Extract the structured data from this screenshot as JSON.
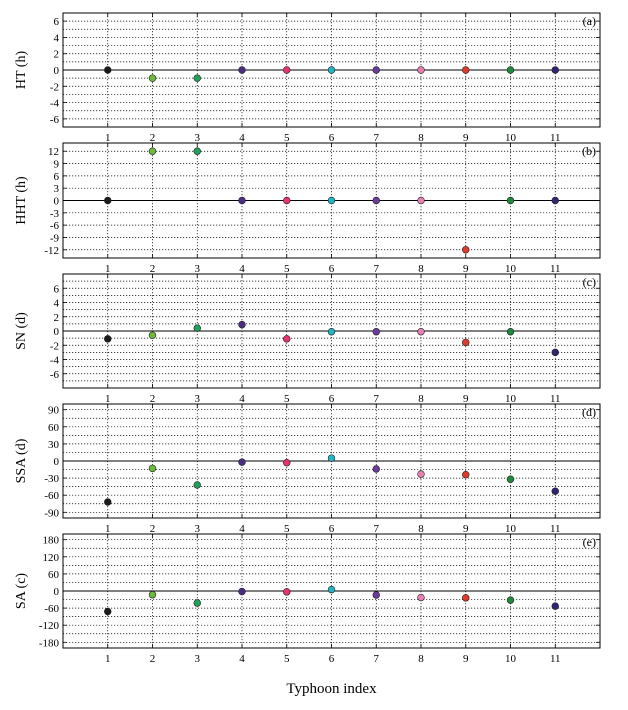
{
  "chart_data": [
    {
      "type": "scatter",
      "panel_label": "(a)",
      "ylabel": "HT (h)",
      "x": [
        1,
        2,
        3,
        4,
        5,
        6,
        7,
        8,
        9,
        10,
        11
      ],
      "y": [
        0,
        -1,
        -1,
        0,
        0,
        0,
        0,
        0,
        0,
        0,
        0
      ],
      "ylim": [
        -7,
        7
      ],
      "yticks": [
        6,
        4,
        2,
        0,
        -2,
        -4,
        -6
      ],
      "gridlines": [
        7,
        6,
        5,
        4,
        3,
        2,
        1,
        -1,
        -2,
        -3,
        -4,
        -5,
        -6,
        -7
      ],
      "grid": true
    },
    {
      "type": "scatter",
      "panel_label": "(b)",
      "ylabel": "HHT (h)",
      "x": [
        1,
        2,
        3,
        4,
        5,
        6,
        7,
        8,
        9,
        10,
        11
      ],
      "y": [
        0,
        12,
        12,
        0,
        0,
        0,
        0,
        0,
        -12,
        0,
        0
      ],
      "ylim": [
        -14,
        14
      ],
      "yticks": [
        12,
        9,
        6,
        3,
        0,
        -3,
        -6,
        -9,
        -12
      ],
      "gridlines": [
        12,
        9,
        6,
        3,
        -3,
        -6,
        -9,
        -12
      ],
      "grid": true
    },
    {
      "type": "scatter",
      "panel_label": "(c)",
      "ylabel": "SN (d)",
      "x": [
        1,
        2,
        3,
        4,
        5,
        6,
        7,
        8,
        9,
        10,
        11
      ],
      "y": [
        -1.1,
        -0.6,
        0.4,
        0.9,
        -1.1,
        -0.1,
        -0.1,
        -0.1,
        -1.6,
        -0.1,
        -3.0
      ],
      "ylim": [
        -8,
        8
      ],
      "yticks": [
        6,
        4,
        2,
        0,
        -2,
        -4,
        -6
      ],
      "gridlines": [
        7,
        6,
        5,
        4,
        3,
        2,
        1,
        -1,
        -2,
        -3,
        -4,
        -5,
        -6,
        -7
      ],
      "grid": true
    },
    {
      "type": "scatter",
      "panel_label": "(d)",
      "ylabel": "SSA (d)",
      "x": [
        1,
        2,
        3,
        4,
        5,
        6,
        7,
        8,
        9,
        10,
        11
      ],
      "y": [
        -72,
        -13,
        -42,
        -2,
        -3,
        5,
        -14,
        -23,
        -24,
        -32,
        -53
      ],
      "ylim": [
        -100,
        100
      ],
      "yticks": [
        90,
        60,
        30,
        0,
        -30,
        -60,
        -90
      ],
      "gridlines": [
        90,
        75,
        60,
        45,
        30,
        15,
        -15,
        -30,
        -45,
        -60,
        -75,
        -90
      ],
      "grid": true
    },
    {
      "type": "scatter",
      "panel_label": "(e)",
      "ylabel": "SA (c)",
      "x": [
        1,
        2,
        3,
        4,
        5,
        6,
        7,
        8,
        9,
        10,
        11
      ],
      "y": [
        -72,
        -13,
        -42,
        -2,
        -3,
        5,
        -14,
        -23,
        -24,
        -32,
        -53
      ],
      "ylim": [
        -200,
        200
      ],
      "yticks": [
        180,
        120,
        60,
        0,
        -60,
        -120,
        -180
      ],
      "gridlines": [
        180,
        150,
        120,
        90,
        60,
        30,
        -30,
        -60,
        -90,
        -120,
        -150,
        -180
      ],
      "grid": true
    }
  ],
  "xlim": [
    0,
    12
  ],
  "xticks": [
    "1",
    "2",
    "3",
    "4",
    "5",
    "6",
    "7",
    "8",
    "9",
    "10",
    "11"
  ],
  "xlabel": "Typhoon index",
  "colors": [
    "#1a1a1a",
    "#6dbb3a",
    "#20a05a",
    "#4b2d84",
    "#e8336e",
    "#22b5c4",
    "#6a3a9c",
    "#e87fb2",
    "#e03a2a",
    "#1e8b3c",
    "#2f2570"
  ]
}
